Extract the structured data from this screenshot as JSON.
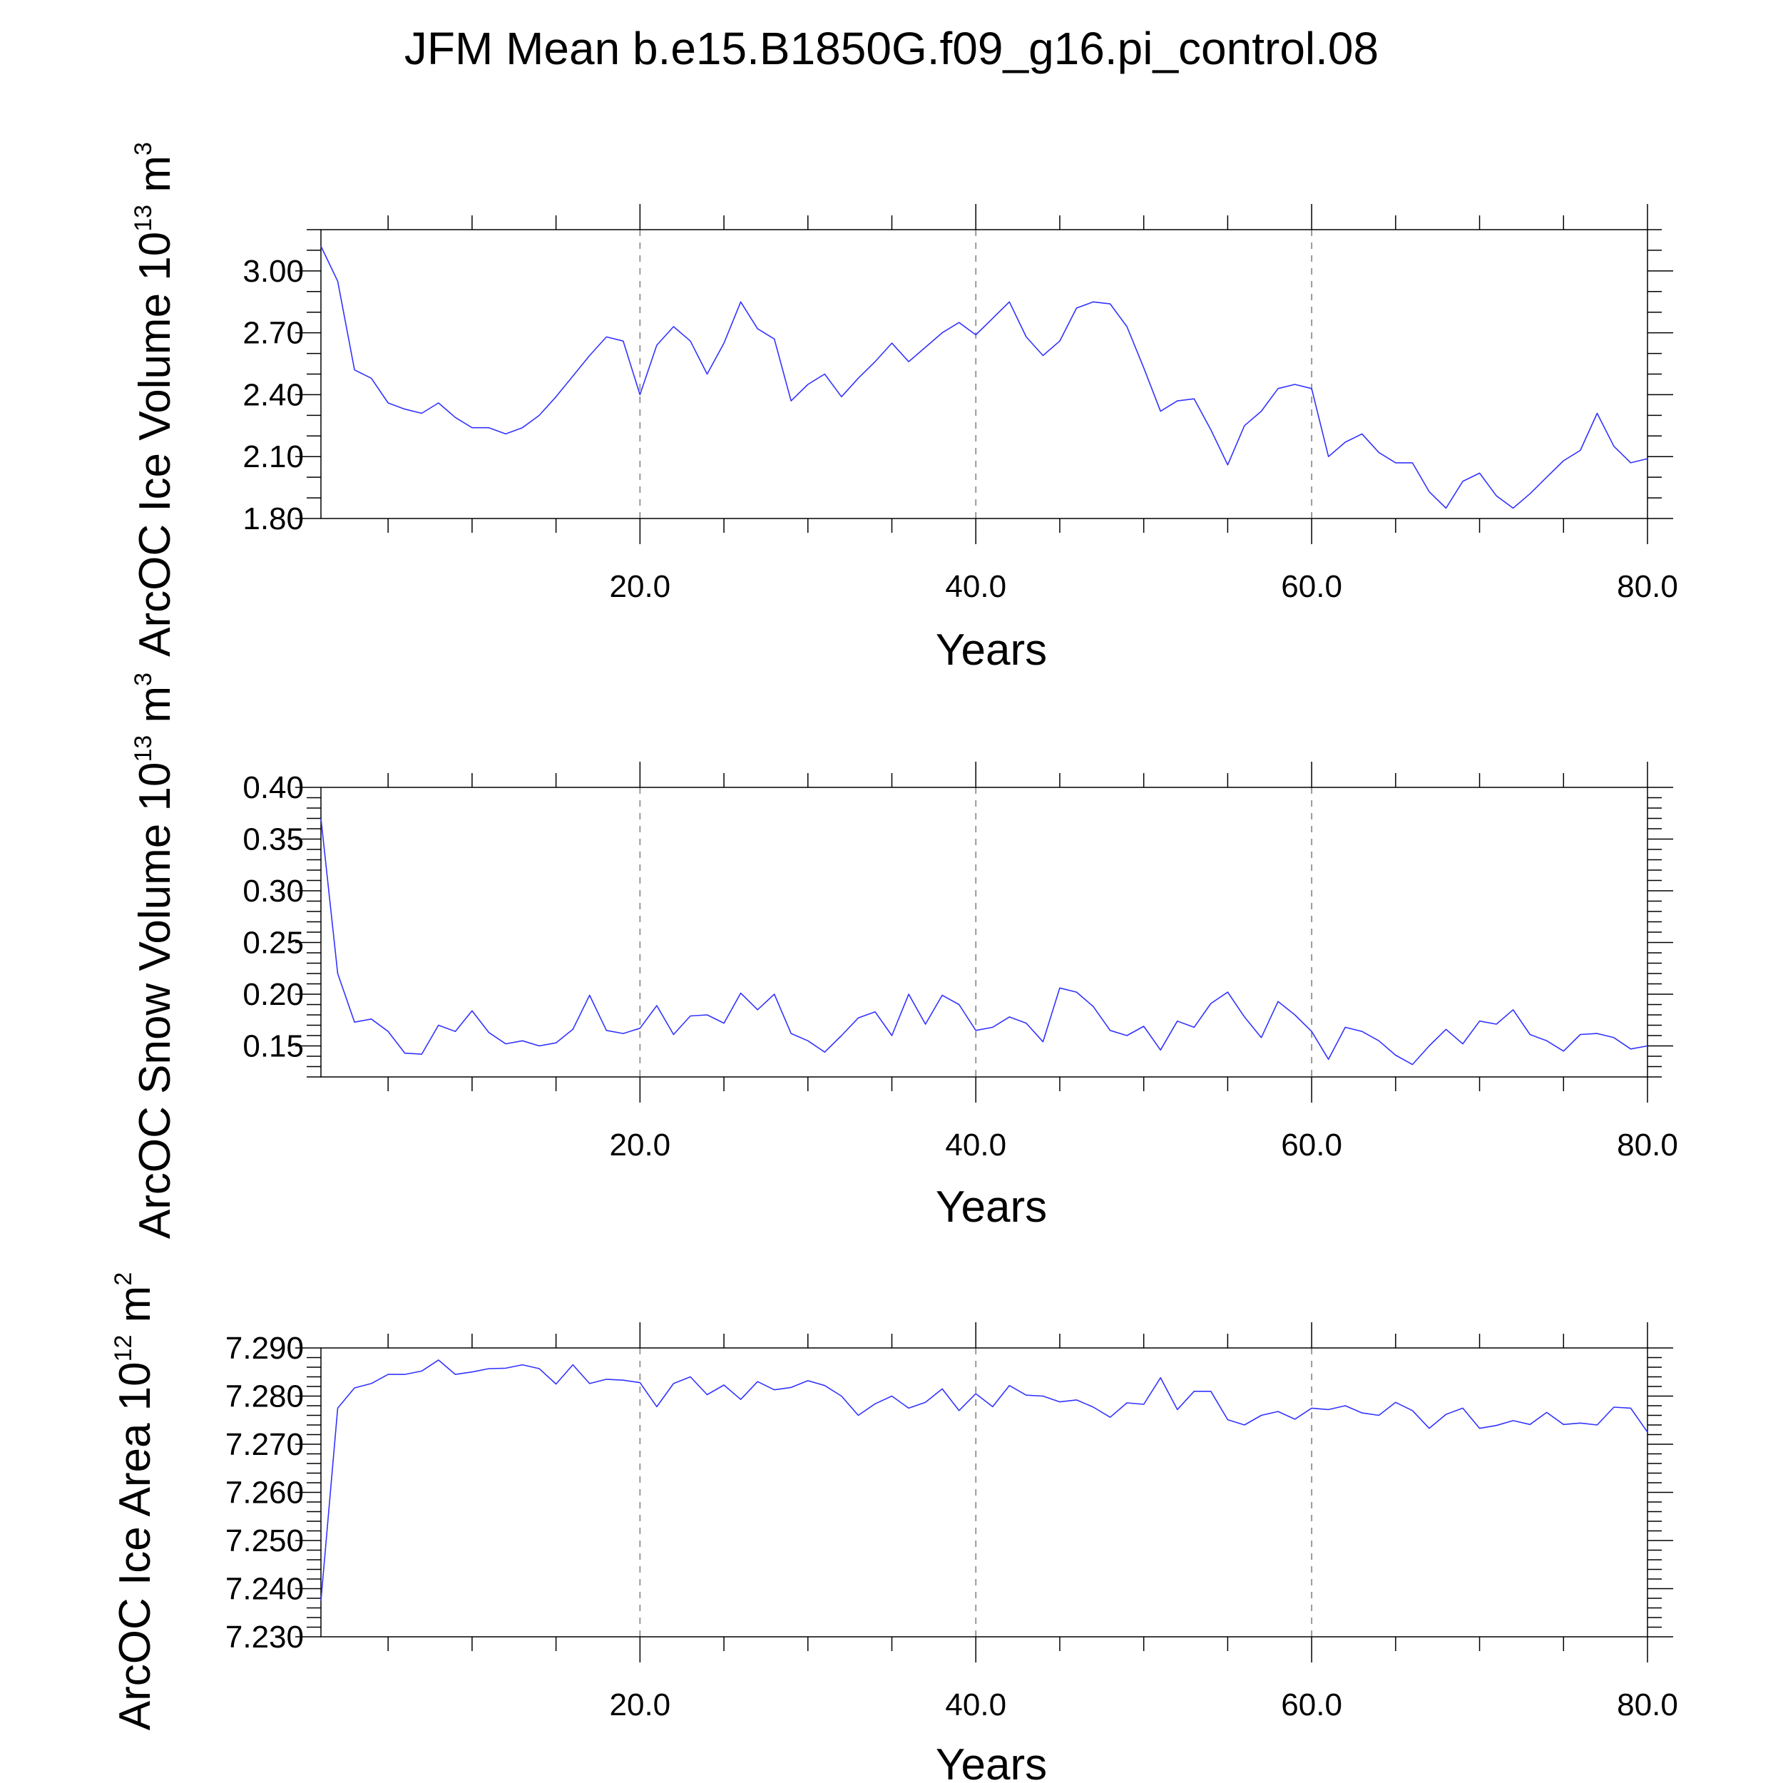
{
  "title": "JFM Mean b.e15.B1850G.f09_g16.pi_control.08",
  "colors": {
    "series": "#3333ff",
    "grid": "#999999",
    "axis": "#000000"
  },
  "chart_data": [
    {
      "type": "line",
      "title": "",
      "xlabel": "Years",
      "ylabel": {
        "base": "ArcOC Ice Volume 10",
        "exp": "13",
        "unit": " m",
        "unit_exp": "3"
      },
      "xlim": [
        1,
        80
      ],
      "ylim": [
        1.8,
        3.2
      ],
      "grid_x": true,
      "x_ticks": [
        20,
        40,
        60,
        80
      ],
      "x_tick_labels": [
        "20.0",
        "40.0",
        "60.0",
        "80.0"
      ],
      "y_ticks": [
        1.8,
        2.1,
        2.4,
        2.7,
        3.0
      ],
      "y_tick_labels": [
        "1.80",
        "2.10",
        "2.40",
        "2.70",
        "3.00"
      ],
      "y_minor": 0.1,
      "series": [
        {
          "name": "ArcOC Ice Volume",
          "x_start": 1,
          "values": [
            3.12,
            2.95,
            2.52,
            2.48,
            2.36,
            2.33,
            2.31,
            2.36,
            2.29,
            2.24,
            2.24,
            2.21,
            2.24,
            2.3,
            2.39,
            2.49,
            2.59,
            2.68,
            2.66,
            2.4,
            2.64,
            2.73,
            2.66,
            2.5,
            2.65,
            2.85,
            2.72,
            2.67,
            2.37,
            2.45,
            2.5,
            2.39,
            2.48,
            2.56,
            2.65,
            2.56,
            2.63,
            2.7,
            2.75,
            2.69,
            2.77,
            2.85,
            2.68,
            2.59,
            2.66,
            2.82,
            2.85,
            2.84,
            2.73,
            2.53,
            2.32,
            2.37,
            2.38,
            2.23,
            2.06,
            2.25,
            2.32,
            2.43,
            2.45,
            2.43,
            2.1,
            2.17,
            2.21,
            2.12,
            2.07,
            2.07,
            1.93,
            1.85,
            1.98,
            2.02,
            1.91,
            1.85,
            1.92,
            2.0,
            2.08,
            2.13,
            2.31,
            2.15,
            2.07,
            2.09
          ]
        }
      ]
    },
    {
      "type": "line",
      "title": "",
      "xlabel": "Years",
      "ylabel": {
        "base": "ArcOC Snow Volume 10",
        "exp": "13",
        "unit": " m",
        "unit_exp": "3"
      },
      "xlim": [
        1,
        80
      ],
      "ylim": [
        0.12,
        0.4
      ],
      "grid_x": true,
      "x_ticks": [
        20,
        40,
        60,
        80
      ],
      "x_tick_labels": [
        "20.0",
        "40.0",
        "60.0",
        "80.0"
      ],
      "y_ticks": [
        0.15,
        0.2,
        0.25,
        0.3,
        0.35,
        0.4
      ],
      "y_tick_labels": [
        "0.15",
        "0.20",
        "0.25",
        "0.30",
        "0.35",
        "0.40"
      ],
      "y_minor": 0.01,
      "series": [
        {
          "name": "ArcOC Snow Volume",
          "x_start": 1,
          "values": [
            0.37,
            0.22,
            0.173,
            0.176,
            0.164,
            0.143,
            0.142,
            0.17,
            0.164,
            0.184,
            0.163,
            0.152,
            0.155,
            0.15,
            0.153,
            0.166,
            0.199,
            0.165,
            0.162,
            0.167,
            0.189,
            0.161,
            0.179,
            0.18,
            0.172,
            0.201,
            0.185,
            0.2,
            0.162,
            0.155,
            0.144,
            0.16,
            0.177,
            0.183,
            0.16,
            0.2,
            0.171,
            0.199,
            0.19,
            0.165,
            0.168,
            0.178,
            0.172,
            0.154,
            0.206,
            0.202,
            0.188,
            0.165,
            0.16,
            0.169,
            0.146,
            0.174,
            0.168,
            0.191,
            0.202,
            0.178,
            0.158,
            0.193,
            0.18,
            0.164,
            0.137,
            0.168,
            0.164,
            0.155,
            0.141,
            0.132,
            0.15,
            0.166,
            0.152,
            0.174,
            0.171,
            0.185,
            0.161,
            0.155,
            0.145,
            0.161,
            0.162,
            0.158,
            0.147,
            0.15
          ]
        }
      ]
    },
    {
      "type": "line",
      "title": "",
      "xlabel": "Years",
      "ylabel": {
        "base": "ArcOC Ice Area 10",
        "exp": "12",
        "unit": " m",
        "unit_exp": "2"
      },
      "xlim": [
        1,
        80
      ],
      "ylim": [
        7.23,
        7.29
      ],
      "grid_x": true,
      "x_ticks": [
        20,
        40,
        60,
        80
      ],
      "x_tick_labels": [
        "20.0",
        "40.0",
        "60.0",
        "80.0"
      ],
      "y_ticks": [
        7.23,
        7.24,
        7.25,
        7.26,
        7.27,
        7.28,
        7.29
      ],
      "y_tick_labels": [
        "7.230",
        "7.240",
        "7.250",
        "7.260",
        "7.270",
        "7.280",
        "7.290"
      ],
      "y_minor": 0.002,
      "series": [
        {
          "name": "ArcOC Ice Area",
          "x_start": 1,
          "values": [
            7.2375,
            7.2775,
            7.2817,
            7.2826,
            7.2845,
            7.2845,
            7.2852,
            7.2875,
            7.2845,
            7.285,
            7.2857,
            7.2858,
            7.2865,
            7.2857,
            7.2825,
            7.2865,
            7.2826,
            7.2835,
            7.2833,
            7.2828,
            7.2778,
            7.2826,
            7.284,
            7.2803,
            7.2823,
            7.2793,
            7.283,
            7.2813,
            7.2818,
            7.2832,
            7.2822,
            7.28,
            7.276,
            7.2784,
            7.28,
            7.2775,
            7.2787,
            7.2815,
            7.277,
            7.2805,
            7.2778,
            7.2822,
            7.2802,
            7.28,
            7.2788,
            7.2792,
            7.2777,
            7.2756,
            7.2786,
            7.2783,
            7.2838,
            7.2772,
            7.281,
            7.281,
            7.2751,
            7.274,
            7.276,
            7.2768,
            7.2752,
            7.2775,
            7.2772,
            7.278,
            7.2765,
            7.276,
            7.2787,
            7.277,
            7.2733,
            7.2762,
            7.2775,
            7.2733,
            7.2739,
            7.2749,
            7.2741,
            7.2766,
            7.2741,
            7.2744,
            7.274,
            7.2777,
            7.2775,
            7.2725
          ]
        }
      ]
    }
  ]
}
